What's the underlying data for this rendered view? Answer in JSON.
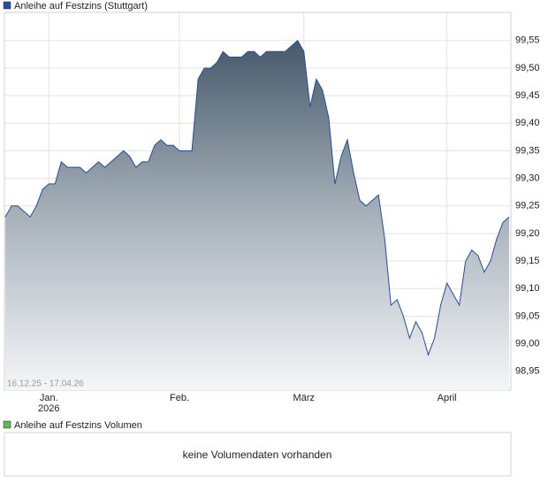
{
  "chart_data": {
    "type": "area",
    "legend": "Anleihe auf Festzins (Stuttgart)",
    "date_range": "16.12.25 - 17.04.26",
    "color": "#1f4f9e",
    "categories": [
      null,
      null,
      null,
      null,
      null,
      null,
      null,
      "Jan.",
      null,
      null,
      null,
      null,
      null,
      null,
      null,
      null,
      null,
      null,
      null,
      null,
      null,
      null,
      null,
      null,
      null,
      null,
      null,
      null,
      "Feb.",
      null,
      null,
      null,
      null,
      null,
      null,
      null,
      null,
      null,
      null,
      null,
      null,
      null,
      null,
      null,
      null,
      null,
      null,
      null,
      "März",
      null,
      null,
      null,
      null,
      null,
      null,
      null,
      null,
      null,
      null,
      null,
      null,
      null,
      null,
      null,
      null,
      null,
      null,
      null,
      null,
      null,
      null,
      "April",
      null,
      null,
      null,
      null,
      null,
      null,
      null,
      null,
      null,
      null
    ],
    "year_label": "2026",
    "values": [
      99.23,
      99.25,
      99.25,
      99.24,
      99.23,
      99.25,
      99.28,
      99.29,
      99.29,
      99.33,
      99.32,
      99.32,
      99.32,
      99.31,
      99.32,
      99.33,
      99.32,
      99.33,
      99.34,
      99.35,
      99.34,
      99.32,
      99.33,
      99.33,
      99.36,
      99.37,
      99.36,
      99.36,
      99.35,
      99.35,
      99.35,
      99.48,
      99.5,
      99.5,
      99.51,
      99.53,
      99.52,
      99.52,
      99.52,
      99.53,
      99.53,
      99.52,
      99.53,
      99.53,
      99.53,
      99.53,
      99.54,
      99.55,
      99.53,
      99.43,
      99.48,
      99.46,
      99.41,
      99.29,
      99.34,
      99.37,
      99.31,
      99.26,
      99.25,
      99.26,
      99.27,
      99.19,
      99.07,
      99.08,
      99.05,
      99.01,
      99.04,
      99.02,
      98.98,
      99.01,
      99.07,
      99.11,
      99.09,
      99.07,
      99.15,
      99.17,
      99.16,
      99.13,
      99.15,
      99.19,
      99.22,
      99.23
    ],
    "ylim": [
      98.916,
      99.601
    ],
    "yticks": [
      {
        "value": 98.95,
        "label": "98,95"
      },
      {
        "value": 99.0,
        "label": "99,00"
      },
      {
        "value": 99.05,
        "label": "99,05"
      },
      {
        "value": 99.1,
        "label": "99,10"
      },
      {
        "value": 99.15,
        "label": "99,15"
      },
      {
        "value": 99.2,
        "label": "99,20"
      },
      {
        "value": 99.25,
        "label": "99,25"
      },
      {
        "value": 99.3,
        "label": "99,30"
      },
      {
        "value": 99.35,
        "label": "99,35"
      },
      {
        "value": 99.4,
        "label": "99,40"
      },
      {
        "value": 99.45,
        "label": "99,45"
      },
      {
        "value": 99.5,
        "label": "99,50"
      },
      {
        "value": 99.55,
        "label": "99,55"
      }
    ],
    "grid": true
  },
  "volume_panel": {
    "legend": "Anleihe auf Festzins Volumen",
    "message": "keine Volumendaten vorhanden",
    "color": "#5cb85c"
  }
}
